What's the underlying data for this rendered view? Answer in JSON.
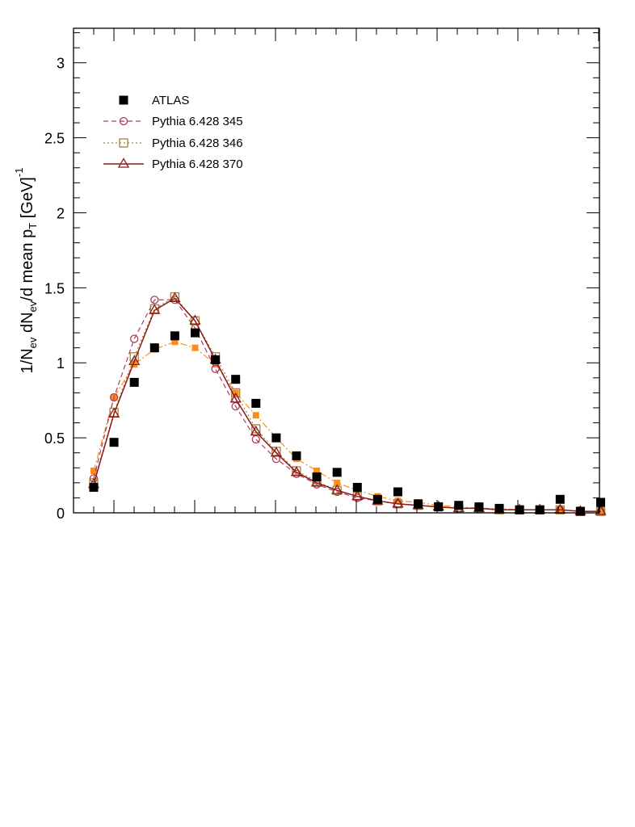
{
  "chart_data": {
    "type": "scatter",
    "ylabel": {
      "parts": [
        "1/N",
        "ev",
        " dN",
        "ev",
        "/d mean p",
        "T",
        " [GeV]",
        "-1"
      ]
    },
    "x_tick_count": 26,
    "ylim": [
      0,
      3.23
    ],
    "y_ticks": [
      "0",
      "0.5",
      "1",
      "1.5",
      "2",
      "2.5",
      "3"
    ],
    "y_tick_values": [
      0,
      0.5,
      1,
      1.5,
      2,
      2.5,
      3
    ],
    "legend_position": "top-left",
    "legend": [
      {
        "name": "ATLAS",
        "marker": "filled-square",
        "color": "#000000",
        "line": "none"
      },
      {
        "name": "Pythia 6.428 345",
        "marker": "open-circle",
        "color": "#b03a5a",
        "line": "dashed"
      },
      {
        "name": "Pythia 6.428 346",
        "marker": "open-square",
        "color": "#a5833a",
        "line": "dotted"
      },
      {
        "name": "Pythia 6.428 370",
        "marker": "open-triangle",
        "color": "#8b1a1a",
        "line": "solid"
      }
    ],
    "series": [
      {
        "name": "ATLAS",
        "values": [
          0.17,
          0.47,
          0.87,
          1.1,
          1.18,
          1.2,
          1.02,
          0.89,
          0.73,
          0.5,
          0.38,
          0.24,
          0.27,
          0.17,
          0.09,
          0.14,
          0.06,
          0.04,
          0.05,
          0.04,
          0.03,
          0.02,
          0.02,
          0.09,
          0.01,
          0.07
        ]
      },
      {
        "name": "Pythia 6.428 345",
        "values": [
          0.23,
          0.77,
          1.16,
          1.42,
          1.42,
          1.23,
          0.96,
          0.71,
          0.49,
          0.36,
          0.26,
          0.19,
          0.14,
          0.1,
          0.08,
          0.06,
          0.05,
          0.04,
          0.03,
          0.03,
          0.02,
          0.02,
          0.02,
          0.02,
          0.01,
          0.01
        ]
      },
      {
        "name": "Pythia 6.428 346",
        "values": [
          0.2,
          0.67,
          1.04,
          1.36,
          1.44,
          1.28,
          1.04,
          0.8,
          0.56,
          0.41,
          0.28,
          0.21,
          0.15,
          0.11,
          0.08,
          0.06,
          0.05,
          0.04,
          0.03,
          0.03,
          0.02,
          0.02,
          0.02,
          0.02,
          0.01,
          0.01
        ]
      },
      {
        "name": "Pythia 6.428 370",
        "values": [
          0.19,
          0.66,
          1.01,
          1.35,
          1.43,
          1.28,
          1.02,
          0.76,
          0.54,
          0.4,
          0.27,
          0.2,
          0.15,
          0.11,
          0.08,
          0.06,
          0.05,
          0.04,
          0.03,
          0.03,
          0.02,
          0.02,
          0.02,
          0.02,
          0.01,
          0.01
        ]
      },
      {
        "name": "",
        "color": "#ff8c1a",
        "marker": "filled-square-small",
        "line": "dash-dot",
        "values": [
          0.28,
          0.77,
          0.99,
          1.09,
          1.14,
          1.1,
          0.99,
          0.8,
          0.65,
          0.5,
          0.36,
          0.28,
          0.2,
          0.15,
          0.11,
          0.08,
          0.07,
          0.05,
          0.04,
          0.03,
          0.03,
          0.02,
          0.02,
          0.02,
          0.01,
          0.01
        ]
      }
    ]
  }
}
